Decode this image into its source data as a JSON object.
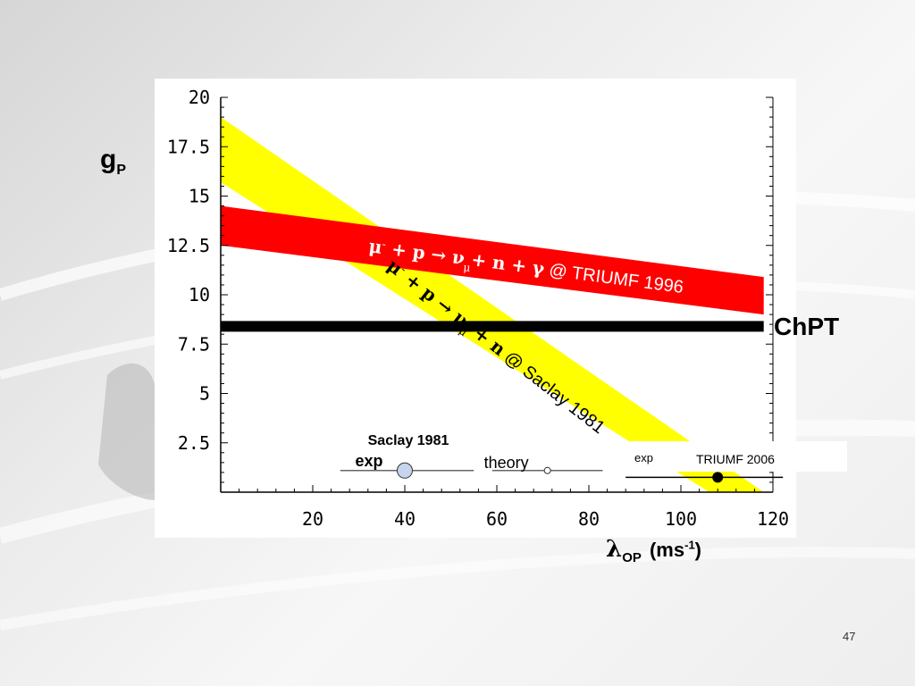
{
  "slide_number": "47",
  "chart_data": {
    "type": "area",
    "xlabel_symbol": "λ",
    "xlabel_sub": "OP",
    "xlabel_unit": "(ms",
    "xlabel_unit_sup": "-1",
    "xlabel_unit_end": ")",
    "ylabel_main": "g",
    "ylabel_sub": "P",
    "xlim": [
      0,
      120
    ],
    "ylim": [
      0,
      20
    ],
    "x_ticks": [
      20,
      40,
      60,
      80,
      100,
      120
    ],
    "y_ticks": [
      2.5,
      5,
      7.5,
      10,
      12.5,
      15,
      17.5,
      20
    ],
    "x_tick_labels": [
      "20",
      "40",
      "60",
      "80",
      "100",
      "120"
    ],
    "y_tick_labels": [
      "2.5",
      "5",
      "7.5",
      "10",
      "12.5",
      "15",
      "17.5",
      "20"
    ],
    "bands": [
      {
        "label": "μ- + p → νμ+ n + γ @ TRIUMF 1996",
        "label_parts": [
          "μ",
          "-",
          " + p → ν",
          "μ",
          "+ n + γ",
          "  @ TRIUMF  1996"
        ],
        "color": "#ff0000",
        "x": [
          0,
          118
        ],
        "upper": [
          14.5,
          10.9
        ],
        "lower": [
          12.5,
          9.0
        ]
      },
      {
        "label": "μ- + p → νμ + n @ Saclay 1981",
        "label_parts": [
          "μ",
          "-",
          " + p → ν",
          "μ",
          " + n",
          "  @ Saclay 1981"
        ],
        "color": "#ffff00",
        "x": [
          0,
          118
        ],
        "upper": [
          19.0,
          0.0
        ],
        "lower": [
          15.7,
          0.0
        ],
        "tail_x": [
          112,
          118
        ]
      }
    ],
    "lines": [
      {
        "label": "ChPT",
        "color": "#000000",
        "y": 8.4,
        "x": [
          0,
          118
        ]
      }
    ],
    "points": [
      {
        "label": "Saclay 1981",
        "sublabel": "exp",
        "x": 40,
        "y": 1.05,
        "xerr": [
          26,
          55
        ],
        "color": "#c7d4ee"
      },
      {
        "label": "theory",
        "x": 71,
        "y": 1.05,
        "xerr": [
          59,
          83
        ],
        "color": "#ffffff"
      },
      {
        "label": "TRIUMF 2006",
        "sublabel": "exp",
        "x": 108,
        "y": 0.75,
        "xerr": [
          88,
          128
        ],
        "color": "#000000"
      }
    ]
  }
}
